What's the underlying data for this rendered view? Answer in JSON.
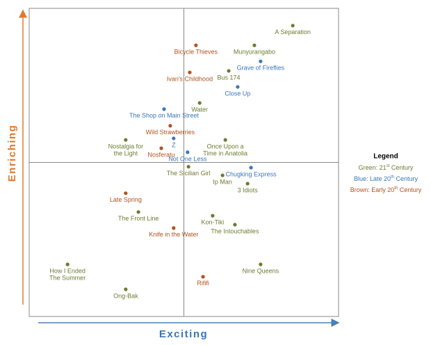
{
  "chart_data": {
    "type": "scatter",
    "x_label": "Exciting",
    "y_label": "Enriching",
    "xlim": [
      0,
      10
    ],
    "ylim": [
      0,
      10
    ],
    "quadrant_lines": [
      5,
      5
    ],
    "legend_title": "Legend",
    "series": [
      {
        "name": "Green: 21",
        "name_sup": "st",
        "name_end": " Century",
        "color": "#6b7b2f",
        "points": [
          {
            "label": [
              "A Separation"
            ],
            "x": 8.52,
            "y": 9.44
          },
          {
            "label": [
              "Munyurangabo"
            ],
            "x": 7.28,
            "y": 8.8
          },
          {
            "label": [
              "Bus 174"
            ],
            "x": 6.45,
            "y": 7.97
          },
          {
            "label": [
              "Water"
            ],
            "x": 5.51,
            "y": 6.93
          },
          {
            "label": [
              "Nostalgia for",
              "the Light"
            ],
            "x": 3.12,
            "y": 5.73
          },
          {
            "label": [
              "Once Upon a",
              "Time in Anatolia"
            ],
            "x": 6.34,
            "y": 5.73
          },
          {
            "label": [
              "The Sicilian Girl"
            ],
            "x": 5.15,
            "y": 4.86
          },
          {
            "label": [
              "Ip Man"
            ],
            "x": 6.25,
            "y": 4.58
          },
          {
            "label": [
              "3 Idiots"
            ],
            "x": 7.06,
            "y": 4.31
          },
          {
            "label": [
              "The Front Line"
            ],
            "x": 3.53,
            "y": 3.39
          },
          {
            "label": [
              "Kon-Tiki"
            ],
            "x": 5.93,
            "y": 3.27
          },
          {
            "label": [
              "The Intouchables"
            ],
            "x": 6.65,
            "y": 2.98
          },
          {
            "label": [
              "How I Ended",
              "The Summer"
            ],
            "x": 1.24,
            "y": 1.69
          },
          {
            "label": [
              "Nine Queens"
            ],
            "x": 7.48,
            "y": 1.69
          },
          {
            "label": [
              "Ong-Bak"
            ],
            "x": 3.12,
            "y": 0.88
          }
        ]
      },
      {
        "name": "Blue: Late 20",
        "name_sup": "th",
        "name_end": " Century",
        "color": "#3a76b8",
        "points": [
          {
            "label": [
              "Grave of Fireflies"
            ],
            "x": 7.48,
            "y": 8.28
          },
          {
            "label": [
              "Close Up"
            ],
            "x": 6.74,
            "y": 7.45
          },
          {
            "label": [
              "The Shop on Main Street"
            ],
            "x": 4.36,
            "y": 6.73
          },
          {
            "label": [
              "Z"
            ],
            "x": 4.67,
            "y": 5.78
          },
          {
            "label": [
              "Not One Less"
            ],
            "x": 5.12,
            "y": 5.33
          },
          {
            "label": [
              "Chugking Express"
            ],
            "x": 7.17,
            "y": 4.83
          }
        ]
      },
      {
        "name": "Brown: Early 20",
        "name_sup": "th",
        "name_end": " Century",
        "color": "#b0521f",
        "points": [
          {
            "label": [
              "Bicycle Thieves"
            ],
            "x": 5.39,
            "y": 8.8
          },
          {
            "label": [
              "Ivan's Childhood"
            ],
            "x": 5.19,
            "y": 7.92
          },
          {
            "label": [
              "Wild Strawberries"
            ],
            "x": 4.56,
            "y": 6.19
          },
          {
            "label": [
              "Nosferatu"
            ],
            "x": 4.27,
            "y": 5.46
          },
          {
            "label": [
              "Late Spring"
            ],
            "x": 3.12,
            "y": 4.0
          },
          {
            "label": [
              "Knife in the Water"
            ],
            "x": 4.67,
            "y": 2.87
          },
          {
            "label": [
              "Rififi"
            ],
            "x": 5.62,
            "y": 1.29
          }
        ]
      }
    ]
  }
}
